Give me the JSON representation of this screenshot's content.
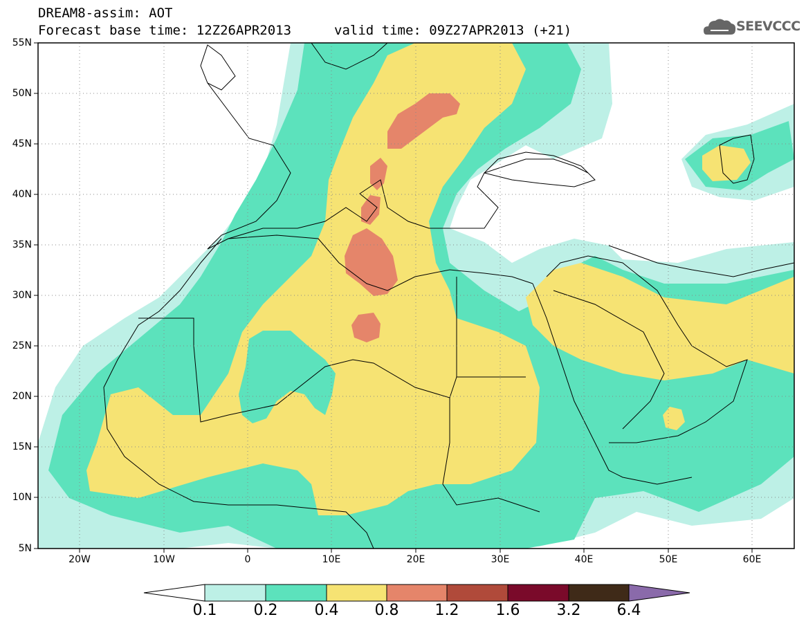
{
  "header": {
    "title": "DREAM8-assim: AOT",
    "base_time": "Forecast base time: 12Z26APR2013",
    "valid_time": "valid time: 09Z27APR2013 (+21)",
    "logo_text": "SEEVCCC",
    "logo_icon": "cloud-icon"
  },
  "map": {
    "projection": "lat-lon",
    "lon_range": [
      -25,
      65
    ],
    "lat_range": [
      5,
      55
    ],
    "lat_ticks": [
      "55N",
      "50N",
      "45N",
      "40N",
      "35N",
      "30N",
      "25N",
      "20N",
      "15N",
      "10N",
      "5N"
    ],
    "lon_ticks": [
      "20W",
      "10W",
      "0",
      "10E",
      "20E",
      "30E",
      "40E",
      "50E",
      "60E"
    ],
    "grid": "dotted"
  },
  "colorbar": {
    "levels": [
      "0.1",
      "0.2",
      "0.4",
      "0.8",
      "1.2",
      "1.6",
      "3.2",
      "6.4"
    ],
    "colors": [
      "#bdf0e6",
      "#5ce2bc",
      "#f6e373",
      "#e5856a",
      "#b04a3a",
      "#7a0a2a",
      "#3f2a18",
      "#8a6aaa"
    ],
    "under_color": "#ffffff"
  }
}
